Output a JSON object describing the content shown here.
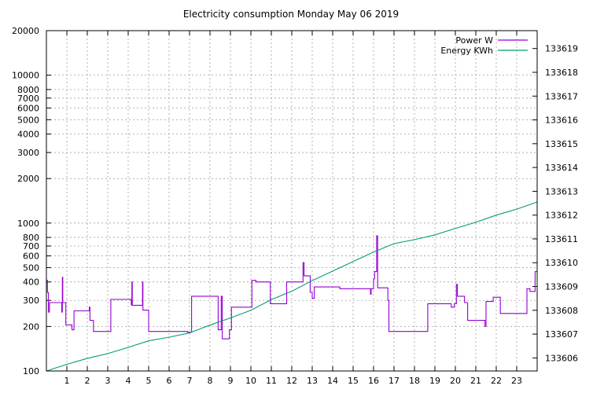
{
  "chart_data": {
    "type": "line",
    "title": "Electricity consumption Monday May 06 2019",
    "x": {
      "range": [
        0,
        24
      ],
      "ticks": [
        1,
        2,
        3,
        4,
        5,
        6,
        7,
        8,
        9,
        10,
        11,
        12,
        13,
        14,
        15,
        16,
        17,
        18,
        19,
        20,
        21,
        22,
        23
      ],
      "tick_labels": [
        "1",
        "2",
        "3",
        "4",
        "5",
        "6",
        "7",
        "8",
        "9",
        "10",
        "11",
        "12",
        "13",
        "14",
        "15",
        "16",
        "17",
        "18",
        "19",
        "20",
        "21",
        "22",
        "23"
      ]
    },
    "y_left": {
      "scale": "log",
      "range": [
        100,
        20000
      ],
      "ticks": [
        100,
        200,
        300,
        400,
        500,
        600,
        700,
        800,
        1000,
        2000,
        3000,
        4000,
        5000,
        6000,
        7000,
        8000,
        10000,
        20000
      ],
      "tick_labels": [
        "100",
        "200",
        "300",
        "400",
        "500",
        "600",
        "700",
        "800",
        "1000",
        "2000",
        "3000",
        "4000",
        "5000",
        "6000",
        "7000",
        "8000",
        "10000",
        "20000"
      ]
    },
    "y_right": {
      "scale": "linear",
      "range": [
        133605.45,
        133619.75
      ],
      "ticks": [
        133606,
        133607,
        133608,
        133609,
        133610,
        133611,
        133612,
        133613,
        133614,
        133615,
        133616,
        133617,
        133618,
        133619
      ],
      "tick_labels": [
        "133606",
        "133607",
        "133608",
        "133609",
        "133610",
        "133611",
        "133612",
        "133613",
        "133614",
        "133615",
        "133616",
        "133617",
        "133618",
        "133619"
      ]
    },
    "grid": true,
    "legend_position": "top-right",
    "series": [
      {
        "name": "Power W",
        "axis": "left",
        "color": "#9400d3",
        "points": [
          [
            0.0,
            410
          ],
          [
            0.05,
            410
          ],
          [
            0.05,
            340
          ],
          [
            0.1,
            340
          ],
          [
            0.1,
            250
          ],
          [
            0.15,
            250
          ],
          [
            0.15,
            290
          ],
          [
            0.75,
            290
          ],
          [
            0.75,
            250
          ],
          [
            0.78,
            250
          ],
          [
            0.78,
            430
          ],
          [
            0.8,
            430
          ],
          [
            0.8,
            290
          ],
          [
            0.95,
            290
          ],
          [
            0.95,
            205
          ],
          [
            1.25,
            205
          ],
          [
            1.25,
            190
          ],
          [
            1.35,
            190
          ],
          [
            1.35,
            255
          ],
          [
            2.1,
            255
          ],
          [
            2.1,
            270
          ],
          [
            2.13,
            270
          ],
          [
            2.13,
            220
          ],
          [
            2.3,
            220
          ],
          [
            2.3,
            185
          ],
          [
            3.15,
            185
          ],
          [
            3.15,
            305
          ],
          [
            4.15,
            305
          ],
          [
            4.15,
            280
          ],
          [
            4.18,
            280
          ],
          [
            4.18,
            400
          ],
          [
            4.2,
            400
          ],
          [
            4.2,
            278
          ],
          [
            4.7,
            278
          ],
          [
            4.7,
            400
          ],
          [
            4.72,
            400
          ],
          [
            4.72,
            258
          ],
          [
            5.0,
            258
          ],
          [
            5.0,
            185
          ],
          [
            6.9,
            185
          ],
          [
            6.9,
            183
          ],
          [
            7.1,
            183
          ],
          [
            7.1,
            320
          ],
          [
            8.4,
            320
          ],
          [
            8.4,
            190
          ],
          [
            8.55,
            190
          ],
          [
            8.55,
            320
          ],
          [
            8.6,
            320
          ],
          [
            8.6,
            165
          ],
          [
            8.95,
            165
          ],
          [
            8.95,
            190
          ],
          [
            9.05,
            190
          ],
          [
            9.05,
            270
          ],
          [
            10.05,
            270
          ],
          [
            10.05,
            410
          ],
          [
            10.25,
            410
          ],
          [
            10.25,
            400
          ],
          [
            10.95,
            400
          ],
          [
            10.95,
            285
          ],
          [
            11.75,
            285
          ],
          [
            11.75,
            400
          ],
          [
            12.55,
            400
          ],
          [
            12.55,
            540
          ],
          [
            12.6,
            540
          ],
          [
            12.6,
            440
          ],
          [
            12.9,
            440
          ],
          [
            12.9,
            340
          ],
          [
            13.0,
            340
          ],
          [
            13.0,
            310
          ],
          [
            13.1,
            310
          ],
          [
            13.1,
            370
          ],
          [
            14.35,
            370
          ],
          [
            14.35,
            360
          ],
          [
            15.85,
            360
          ],
          [
            15.85,
            330
          ],
          [
            15.88,
            330
          ],
          [
            15.88,
            360
          ],
          [
            16.0,
            360
          ],
          [
            16.0,
            420
          ],
          [
            16.05,
            420
          ],
          [
            16.05,
            470
          ],
          [
            16.15,
            470
          ],
          [
            16.15,
            820
          ],
          [
            16.2,
            820
          ],
          [
            16.2,
            365
          ],
          [
            16.7,
            365
          ],
          [
            16.7,
            300
          ],
          [
            16.75,
            300
          ],
          [
            16.75,
            185
          ],
          [
            18.65,
            185
          ],
          [
            18.65,
            285
          ],
          [
            19.8,
            285
          ],
          [
            19.8,
            270
          ],
          [
            19.95,
            270
          ],
          [
            19.95,
            285
          ],
          [
            20.05,
            285
          ],
          [
            20.05,
            385
          ],
          [
            20.1,
            385
          ],
          [
            20.1,
            320
          ],
          [
            20.45,
            320
          ],
          [
            20.45,
            290
          ],
          [
            20.6,
            290
          ],
          [
            20.6,
            220
          ],
          [
            21.45,
            220
          ],
          [
            21.45,
            200
          ],
          [
            21.5,
            200
          ],
          [
            21.5,
            295
          ],
          [
            21.85,
            295
          ],
          [
            21.85,
            315
          ],
          [
            22.2,
            315
          ],
          [
            22.2,
            245
          ],
          [
            23.5,
            245
          ],
          [
            23.5,
            360
          ],
          [
            23.65,
            360
          ],
          [
            23.65,
            345
          ],
          [
            23.9,
            345
          ],
          [
            23.9,
            470
          ],
          [
            24.0,
            470
          ]
        ]
      },
      {
        "name": "Energy KWh",
        "axis": "right",
        "color": "#009e73",
        "points": [
          [
            0.0,
            133605.45
          ],
          [
            1.0,
            133605.73
          ],
          [
            2.0,
            133605.98
          ],
          [
            3.0,
            133606.18
          ],
          [
            4.0,
            133606.44
          ],
          [
            5.0,
            133606.72
          ],
          [
            6.0,
            133606.87
          ],
          [
            7.0,
            133607.05
          ],
          [
            8.0,
            133607.38
          ],
          [
            9.0,
            133607.68
          ],
          [
            10.0,
            133608.0
          ],
          [
            11.0,
            133608.45
          ],
          [
            12.0,
            133608.8
          ],
          [
            13.0,
            133609.25
          ],
          [
            14.0,
            133609.65
          ],
          [
            15.0,
            133610.05
          ],
          [
            16.0,
            133610.45
          ],
          [
            17.0,
            133610.8
          ],
          [
            18.0,
            133610.97
          ],
          [
            19.0,
            133611.17
          ],
          [
            20.0,
            133611.44
          ],
          [
            21.0,
            133611.7
          ],
          [
            22.0,
            133612.0
          ],
          [
            23.0,
            133612.25
          ],
          [
            24.0,
            133612.55
          ]
        ]
      }
    ]
  }
}
